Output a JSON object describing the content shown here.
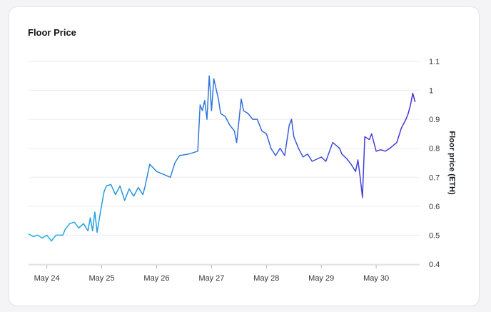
{
  "title": "Floor Price",
  "chart_data": {
    "type": "line",
    "title": "Floor Price",
    "xlabel": "",
    "ylabel": "Floor price (ETH)",
    "y_axis_side": "right",
    "grid": "horizontal",
    "legend": "none",
    "ylim": [
      0.4,
      1.1
    ],
    "yticks": [
      "0.4",
      "0.5",
      "0.6",
      "0.7",
      "0.8",
      "0.9",
      "1",
      "1.1"
    ],
    "xlim": [
      "May 23 16:00",
      "May 30 19:00"
    ],
    "xticks": [
      "May 24",
      "May 25",
      "May 26",
      "May 27",
      "May 28",
      "May 29",
      "May 30"
    ],
    "gradient_colors": [
      "#1ab7e0",
      "#4a2bd6"
    ],
    "series": [
      {
        "points": [
          [
            "May 23 16:00",
            0.505
          ],
          [
            "May 23 18:00",
            0.495
          ],
          [
            "May 23 20:00",
            0.5
          ],
          [
            "May 23 22:00",
            0.49
          ],
          [
            "May 24 00:00",
            0.5
          ],
          [
            "May 24 02:00",
            0.48
          ],
          [
            "May 24 04:00",
            0.5
          ],
          [
            "May 24 07:00",
            0.5
          ],
          [
            "May 24 08:00",
            0.52
          ],
          [
            "May 24 10:00",
            0.54
          ],
          [
            "May 24 12:00",
            0.545
          ],
          [
            "May 24 14:00",
            0.525
          ],
          [
            "May 24 16:00",
            0.54
          ],
          [
            "May 24 18:00",
            0.515
          ],
          [
            "May 24 19:00",
            0.56
          ],
          [
            "May 24 20:00",
            0.515
          ],
          [
            "May 24 21:00",
            0.58
          ],
          [
            "May 24 22:00",
            0.51
          ],
          [
            "May 24 23:00",
            0.56
          ],
          [
            "May 25 01:00",
            0.65
          ],
          [
            "May 25 02:00",
            0.67
          ],
          [
            "May 25 04:00",
            0.675
          ],
          [
            "May 25 06:00",
            0.64
          ],
          [
            "May 25 08:00",
            0.67
          ],
          [
            "May 25 10:00",
            0.62
          ],
          [
            "May 25 12:00",
            0.66
          ],
          [
            "May 25 14:00",
            0.635
          ],
          [
            "May 25 16:00",
            0.665
          ],
          [
            "May 25 18:00",
            0.64
          ],
          [
            "May 25 19:00",
            0.67
          ],
          [
            "May 25 21:00",
            0.745
          ],
          [
            "May 26 00:00",
            0.72
          ],
          [
            "May 26 03:00",
            0.71
          ],
          [
            "May 26 06:00",
            0.7
          ],
          [
            "May 26 08:00",
            0.75
          ],
          [
            "May 26 10:00",
            0.775
          ],
          [
            "May 26 14:00",
            0.78
          ],
          [
            "May 26 18:00",
            0.79
          ],
          [
            "May 26 19:00",
            0.95
          ],
          [
            "May 26 20:00",
            0.93
          ],
          [
            "May 26 21:00",
            0.965
          ],
          [
            "May 26 22:00",
            0.9
          ],
          [
            "May 26 23:00",
            1.05
          ],
          [
            "May 27 00:00",
            0.93
          ],
          [
            "May 27 01:00",
            1.04
          ],
          [
            "May 27 03:00",
            0.97
          ],
          [
            "May 27 04:00",
            0.92
          ],
          [
            "May 27 06:00",
            0.91
          ],
          [
            "May 27 08:00",
            0.88
          ],
          [
            "May 27 10:00",
            0.86
          ],
          [
            "May 27 11:00",
            0.82
          ],
          [
            "May 27 13:00",
            0.97
          ],
          [
            "May 27 14:00",
            0.93
          ],
          [
            "May 27 16:00",
            0.92
          ],
          [
            "May 27 18:00",
            0.9
          ],
          [
            "May 27 20:00",
            0.9
          ],
          [
            "May 27 22:00",
            0.86
          ],
          [
            "May 28 00:00",
            0.85
          ],
          [
            "May 28 02:00",
            0.8
          ],
          [
            "May 28 04:00",
            0.775
          ],
          [
            "May 28 06:00",
            0.8
          ],
          [
            "May 28 08:00",
            0.775
          ],
          [
            "May 28 10:00",
            0.88
          ],
          [
            "May 28 11:00",
            0.9
          ],
          [
            "May 28 12:00",
            0.84
          ],
          [
            "May 28 14:00",
            0.8
          ],
          [
            "May 28 16:00",
            0.77
          ],
          [
            "May 28 18:00",
            0.78
          ],
          [
            "May 28 20:00",
            0.755
          ],
          [
            "May 29 00:00",
            0.77
          ],
          [
            "May 29 02:00",
            0.755
          ],
          [
            "May 29 05:00",
            0.82
          ],
          [
            "May 29 08:00",
            0.8
          ],
          [
            "May 29 09:00",
            0.78
          ],
          [
            "May 29 11:00",
            0.765
          ],
          [
            "May 29 13:00",
            0.745
          ],
          [
            "May 29 15:00",
            0.72
          ],
          [
            "May 29 16:00",
            0.76
          ],
          [
            "May 29 17:00",
            0.7
          ],
          [
            "May 29 18:00",
            0.63
          ],
          [
            "May 29 19:00",
            0.84
          ],
          [
            "May 29 21:00",
            0.83
          ],
          [
            "May 29 22:00",
            0.85
          ],
          [
            "May 30 00:00",
            0.79
          ],
          [
            "May 30 02:00",
            0.795
          ],
          [
            "May 30 04:00",
            0.79
          ],
          [
            "May 30 06:00",
            0.8
          ],
          [
            "May 30 09:00",
            0.82
          ],
          [
            "May 30 11:00",
            0.87
          ],
          [
            "May 30 13:00",
            0.9
          ],
          [
            "May 30 14:00",
            0.92
          ],
          [
            "May 30 15:00",
            0.95
          ],
          [
            "May 30 16:00",
            0.99
          ],
          [
            "May 30 17:00",
            0.96
          ]
        ]
      }
    ]
  }
}
